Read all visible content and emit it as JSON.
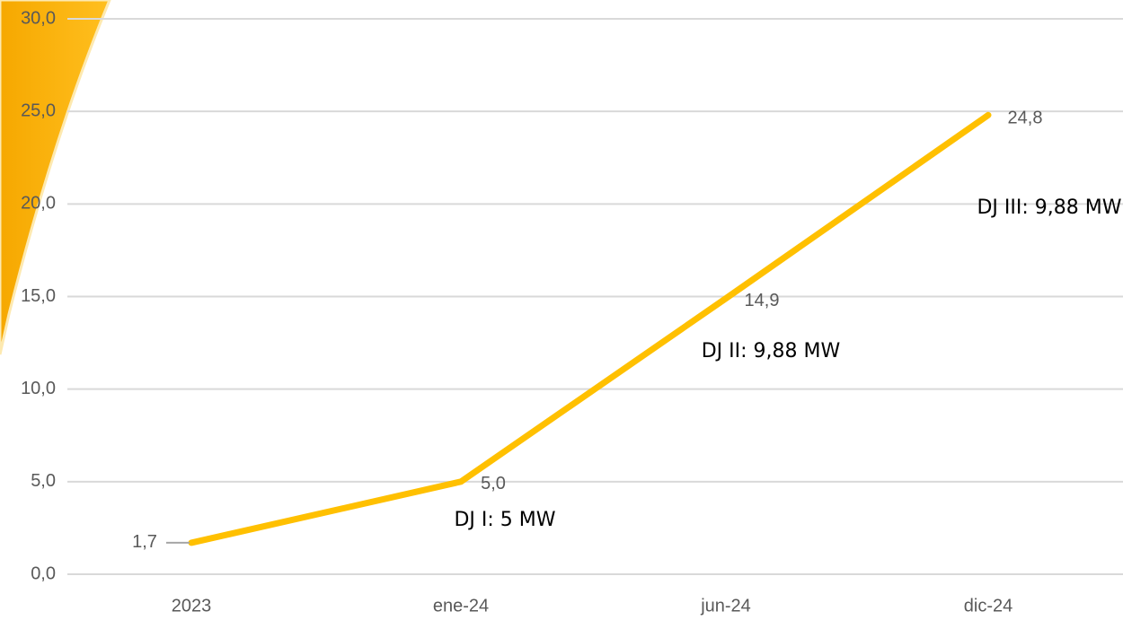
{
  "chart_data": {
    "type": "line",
    "categories": [
      "2023",
      "ene-24",
      "jun-24",
      "dic-24"
    ],
    "values": [
      1.7,
      5.0,
      14.9,
      24.8
    ],
    "value_labels": [
      "1,7",
      "5,0",
      "14,9",
      "24,8"
    ],
    "color": "#ffc000",
    "ylim": [
      0,
      30
    ],
    "yticks": [
      {
        "value": 0,
        "label": "0,0"
      },
      {
        "value": 5,
        "label": "5,0"
      },
      {
        "value": 10,
        "label": "10,0"
      },
      {
        "value": 15,
        "label": "15,0"
      },
      {
        "value": 20,
        "label": "20,0"
      },
      {
        "value": 25,
        "label": "25,0"
      },
      {
        "value": 30,
        "label": "30,0"
      }
    ],
    "grid": true,
    "annotations": [
      "DJ I: 5 MW",
      "DJ II: 9,88 MW",
      "DJ III: 9,88 MW"
    ]
  }
}
